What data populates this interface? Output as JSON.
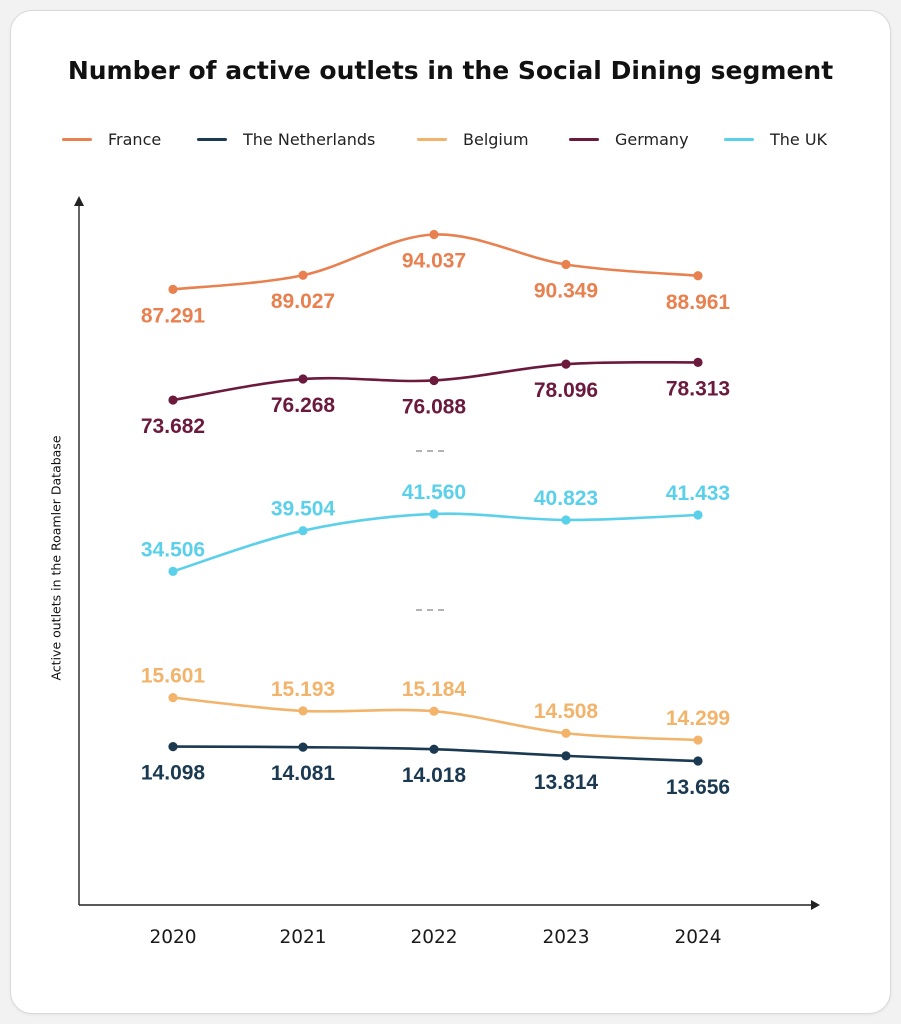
{
  "chart_data": {
    "type": "line",
    "title": "Number of active outlets in the Social Dining segment",
    "ylabel": "Active outlets in the Roamler Database",
    "xlabel": "",
    "categories": [
      "2020",
      "2021",
      "2022",
      "2023",
      "2024"
    ],
    "axis_break": true,
    "legend_position": "top",
    "series": [
      {
        "name": "France",
        "color": "#E8804F",
        "values": [
          87291,
          89027,
          94037,
          90349,
          88961
        ],
        "labels": [
          "87.291",
          "89.027",
          "94.037",
          "90.349",
          "88.961"
        ]
      },
      {
        "name": "The Netherlands",
        "color": "#1B3A52",
        "values": [
          14098,
          14081,
          14018,
          13814,
          13656
        ],
        "labels": [
          "14.098",
          "14.081",
          "14.018",
          "13.814",
          "13.656"
        ]
      },
      {
        "name": "Belgium",
        "color": "#F2B36B",
        "values": [
          15601,
          15193,
          15184,
          14508,
          14299
        ],
        "labels": [
          "15.601",
          "15.193",
          "15.184",
          "14.508",
          "14.299"
        ]
      },
      {
        "name": "Germany",
        "color": "#6B1A3E",
        "values": [
          73682,
          76268,
          76088,
          78096,
          78313
        ],
        "labels": [
          "73.682",
          "76.268",
          "76.088",
          "78.096",
          "78.313"
        ]
      },
      {
        "name": "The UK",
        "color": "#5BD0EB",
        "values": [
          34506,
          39504,
          41560,
          40823,
          41433
        ],
        "labels": [
          "34.506",
          "39.504",
          "41.560",
          "40.823",
          "41.433"
        ]
      }
    ]
  }
}
